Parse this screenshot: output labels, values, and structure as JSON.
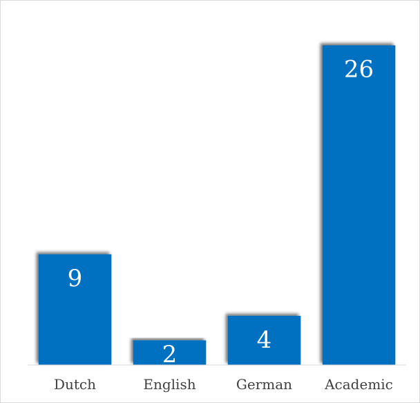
{
  "chart_data": {
    "type": "bar",
    "title": "",
    "xlabel": "",
    "ylabel": "",
    "categories": [
      "Dutch",
      "English",
      "German",
      "Academic"
    ],
    "values": [
      9,
      2,
      4,
      26
    ],
    "data_labels": [
      "9",
      "2",
      "4",
      "26"
    ],
    "ylim": [
      0,
      28
    ],
    "grid": false,
    "legend": "none",
    "colors": {
      "bar": "#0070c0",
      "axis": "#d9d9d9",
      "tick_text": "#404040",
      "label_text": "#ffffff"
    }
  }
}
